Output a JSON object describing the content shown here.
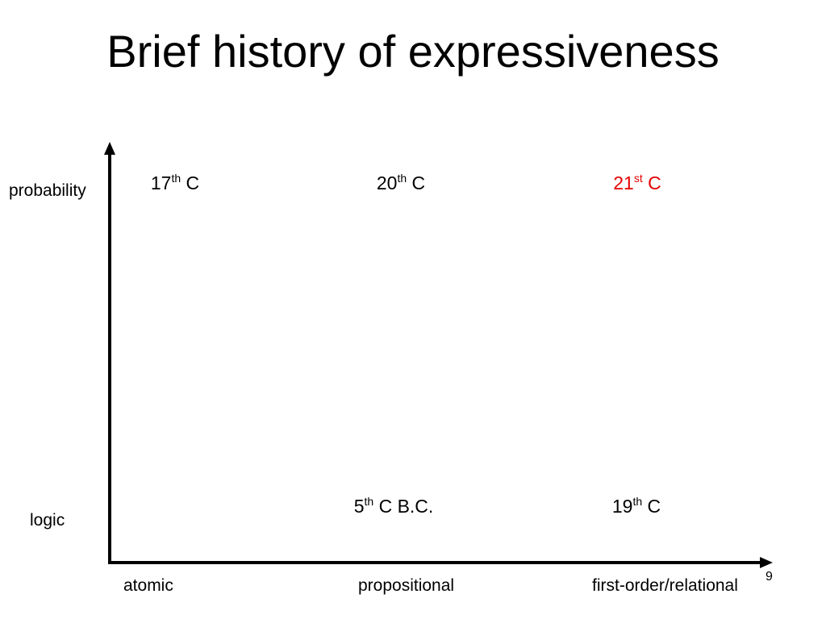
{
  "slide": {
    "title": "Brief history of expressiveness",
    "page_number": "9"
  },
  "y_axis": {
    "labels": [
      "logic",
      "probability"
    ]
  },
  "x_axis": {
    "labels": [
      "atomic",
      "propositional",
      "first-order/relational"
    ]
  },
  "cells": [
    {
      "row": "probability",
      "column": "atomic",
      "number": "17",
      "suffix": "th",
      "rest": " C",
      "color": "#000000"
    },
    {
      "row": "probability",
      "column": "propositional",
      "number": "20",
      "suffix": "th",
      "rest": " C",
      "color": "#000000"
    },
    {
      "row": "probability",
      "column": "first-order/relational",
      "number": "21",
      "suffix": "st",
      "rest": " C",
      "color": "#e60000"
    },
    {
      "row": "logic",
      "column": "propositional",
      "number": "5",
      "suffix": "th",
      "rest": " C B.C.",
      "color": "#000000"
    },
    {
      "row": "logic",
      "column": "first-order/relational",
      "number": "19",
      "suffix": "th",
      "rest": " C",
      "color": "#000000"
    }
  ],
  "colors": {
    "axis": "#000000",
    "highlight": "#e60000"
  }
}
